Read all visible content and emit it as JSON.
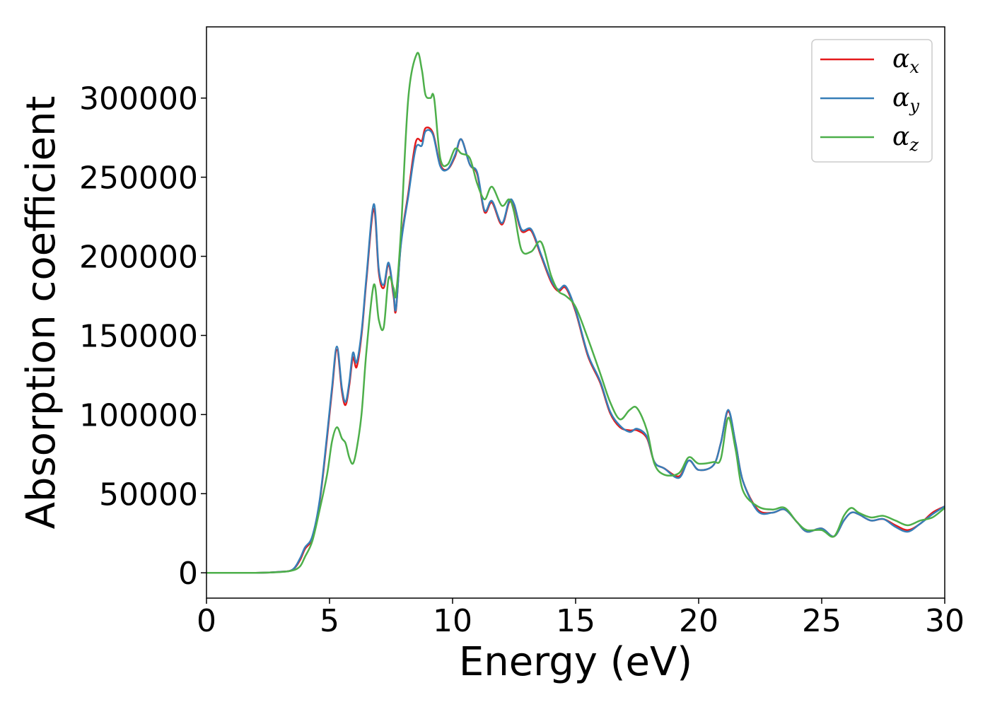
{
  "chart_data": {
    "type": "line",
    "title": "",
    "xlabel": "Energy (eV)",
    "ylabel": "Absorption coefficient",
    "xlim": [
      0,
      30
    ],
    "ylim": [
      -16000,
      345000
    ],
    "x_ticks": [
      0,
      5,
      10,
      15,
      20,
      25,
      30
    ],
    "y_ticks": [
      0,
      50000,
      100000,
      150000,
      200000,
      250000,
      300000
    ],
    "grid": false,
    "legend_position": "top-right",
    "series": [
      {
        "name": "α",
        "subscript": "x",
        "color": "#e41a1c",
        "points": [
          [
            0,
            0
          ],
          [
            2,
            0
          ],
          [
            3,
            600
          ],
          [
            3.5,
            2000
          ],
          [
            3.8,
            8000
          ],
          [
            4,
            15000
          ],
          [
            4.3,
            22000
          ],
          [
            4.6,
            45000
          ],
          [
            4.9,
            85000
          ],
          [
            5.1,
            115000
          ],
          [
            5.3,
            141000
          ],
          [
            5.5,
            115000
          ],
          [
            5.65,
            106000
          ],
          [
            5.8,
            118000
          ],
          [
            5.95,
            136000
          ],
          [
            6.1,
            130000
          ],
          [
            6.3,
            150000
          ],
          [
            6.5,
            185000
          ],
          [
            6.8,
            230000
          ],
          [
            7.0,
            190000
          ],
          [
            7.2,
            180000
          ],
          [
            7.4,
            195000
          ],
          [
            7.6,
            175000
          ],
          [
            7.7,
            166000
          ],
          [
            7.9,
            208000
          ],
          [
            8.2,
            240000
          ],
          [
            8.5,
            272000
          ],
          [
            8.75,
            273000
          ],
          [
            8.9,
            281000
          ],
          [
            9.2,
            278000
          ],
          [
            9.5,
            258000
          ],
          [
            9.8,
            255000
          ],
          [
            10.1,
            263000
          ],
          [
            10.35,
            274000
          ],
          [
            10.7,
            258000
          ],
          [
            11.0,
            252000
          ],
          [
            11.3,
            228000
          ],
          [
            11.6,
            234000
          ],
          [
            12.0,
            220000
          ],
          [
            12.3,
            234000
          ],
          [
            12.5,
            232000
          ],
          [
            12.8,
            216000
          ],
          [
            13.2,
            216000
          ],
          [
            13.6,
            200000
          ],
          [
            14.0,
            184000
          ],
          [
            14.3,
            178000
          ],
          [
            14.6,
            180000
          ],
          [
            15.0,
            165000
          ],
          [
            15.5,
            137000
          ],
          [
            16.0,
            120000
          ],
          [
            16.4,
            101000
          ],
          [
            16.8,
            92000
          ],
          [
            17.2,
            90000
          ],
          [
            17.5,
            90000
          ],
          [
            17.9,
            85000
          ],
          [
            18.2,
            70000
          ],
          [
            18.6,
            66000
          ],
          [
            19.2,
            61000
          ],
          [
            19.6,
            71000
          ],
          [
            20.0,
            65000
          ],
          [
            20.6,
            68000
          ],
          [
            20.9,
            82000
          ],
          [
            21.2,
            102000
          ],
          [
            21.5,
            82000
          ],
          [
            21.8,
            58000
          ],
          [
            22.4,
            40000
          ],
          [
            23.0,
            38000
          ],
          [
            23.5,
            40000
          ],
          [
            24.0,
            32000
          ],
          [
            24.4,
            26000
          ],
          [
            25.0,
            28000
          ],
          [
            25.5,
            23000
          ],
          [
            25.9,
            33000
          ],
          [
            26.2,
            38000
          ],
          [
            26.5,
            37000
          ],
          [
            27.0,
            33000
          ],
          [
            27.5,
            34000
          ],
          [
            28.0,
            30000
          ],
          [
            28.5,
            27000
          ],
          [
            29.0,
            31000
          ],
          [
            29.5,
            38000
          ],
          [
            30,
            42000
          ]
        ]
      },
      {
        "name": "α",
        "subscript": "y",
        "color": "#377eb8",
        "points": [
          [
            0,
            0
          ],
          [
            2,
            0
          ],
          [
            3,
            600
          ],
          [
            3.5,
            2000
          ],
          [
            3.8,
            9000
          ],
          [
            4,
            16000
          ],
          [
            4.3,
            23000
          ],
          [
            4.6,
            46000
          ],
          [
            4.9,
            87000
          ],
          [
            5.1,
            117000
          ],
          [
            5.3,
            143000
          ],
          [
            5.5,
            117000
          ],
          [
            5.65,
            108000
          ],
          [
            5.8,
            120000
          ],
          [
            5.95,
            139000
          ],
          [
            6.1,
            133000
          ],
          [
            6.3,
            152000
          ],
          [
            6.5,
            187000
          ],
          [
            6.8,
            233000
          ],
          [
            7.0,
            192000
          ],
          [
            7.2,
            182000
          ],
          [
            7.4,
            196000
          ],
          [
            7.6,
            177000
          ],
          [
            7.7,
            167000
          ],
          [
            7.9,
            207000
          ],
          [
            8.2,
            238000
          ],
          [
            8.5,
            268000
          ],
          [
            8.75,
            270000
          ],
          [
            8.9,
            279000
          ],
          [
            9.2,
            277000
          ],
          [
            9.5,
            257000
          ],
          [
            9.8,
            255000
          ],
          [
            10.1,
            264000
          ],
          [
            10.35,
            274000
          ],
          [
            10.7,
            258000
          ],
          [
            11.0,
            253000
          ],
          [
            11.3,
            229000
          ],
          [
            11.6,
            235000
          ],
          [
            12.0,
            221000
          ],
          [
            12.3,
            235000
          ],
          [
            12.5,
            233000
          ],
          [
            12.8,
            217000
          ],
          [
            13.2,
            217000
          ],
          [
            13.6,
            201000
          ],
          [
            14.0,
            185000
          ],
          [
            14.3,
            179000
          ],
          [
            14.6,
            181000
          ],
          [
            15.0,
            166000
          ],
          [
            15.5,
            138000
          ],
          [
            16.0,
            121000
          ],
          [
            16.4,
            102000
          ],
          [
            16.8,
            93000
          ],
          [
            17.2,
            89000
          ],
          [
            17.5,
            91000
          ],
          [
            17.9,
            86000
          ],
          [
            18.2,
            70000
          ],
          [
            18.6,
            66000
          ],
          [
            19.2,
            60000
          ],
          [
            19.6,
            71000
          ],
          [
            20.0,
            65000
          ],
          [
            20.6,
            68000
          ],
          [
            20.9,
            82000
          ],
          [
            21.2,
            103000
          ],
          [
            21.5,
            82000
          ],
          [
            21.8,
            58000
          ],
          [
            22.4,
            39000
          ],
          [
            23.0,
            38000
          ],
          [
            23.5,
            40000
          ],
          [
            24.0,
            32000
          ],
          [
            24.4,
            26000
          ],
          [
            25.0,
            28000
          ],
          [
            25.5,
            23000
          ],
          [
            25.9,
            33000
          ],
          [
            26.2,
            38000
          ],
          [
            26.5,
            37000
          ],
          [
            27.0,
            33000
          ],
          [
            27.5,
            34000
          ],
          [
            28.0,
            29000
          ],
          [
            28.5,
            26000
          ],
          [
            29.0,
            31000
          ],
          [
            29.5,
            37000
          ],
          [
            30,
            42000
          ]
        ]
      },
      {
        "name": "α",
        "subscript": "z",
        "color": "#4daf4a",
        "points": [
          [
            0,
            0
          ],
          [
            2,
            0
          ],
          [
            3,
            500
          ],
          [
            3.5,
            1500
          ],
          [
            3.8,
            4000
          ],
          [
            4,
            10000
          ],
          [
            4.3,
            20000
          ],
          [
            4.6,
            40000
          ],
          [
            4.9,
            62000
          ],
          [
            5.1,
            83000
          ],
          [
            5.3,
            92000
          ],
          [
            5.5,
            85000
          ],
          [
            5.65,
            82000
          ],
          [
            5.8,
            73000
          ],
          [
            5.95,
            69000
          ],
          [
            6.1,
            78000
          ],
          [
            6.3,
            100000
          ],
          [
            6.5,
            140000
          ],
          [
            6.8,
            182000
          ],
          [
            7.0,
            160000
          ],
          [
            7.2,
            155000
          ],
          [
            7.4,
            186000
          ],
          [
            7.6,
            180000
          ],
          [
            7.7,
            176000
          ],
          [
            7.9,
            215000
          ],
          [
            8.2,
            300000
          ],
          [
            8.55,
            328000
          ],
          [
            8.75,
            318000
          ],
          [
            8.9,
            302000
          ],
          [
            9.1,
            300000
          ],
          [
            9.25,
            300000
          ],
          [
            9.5,
            262000
          ],
          [
            9.8,
            258000
          ],
          [
            10.1,
            268000
          ],
          [
            10.35,
            265000
          ],
          [
            10.7,
            262000
          ],
          [
            11.0,
            246000
          ],
          [
            11.3,
            236000
          ],
          [
            11.6,
            244000
          ],
          [
            12.0,
            232000
          ],
          [
            12.3,
            236000
          ],
          [
            12.5,
            228000
          ],
          [
            12.8,
            204000
          ],
          [
            13.2,
            203000
          ],
          [
            13.6,
            209000
          ],
          [
            14.0,
            188000
          ],
          [
            14.3,
            178000
          ],
          [
            14.6,
            175000
          ],
          [
            15.0,
            168000
          ],
          [
            15.5,
            148000
          ],
          [
            16.0,
            126000
          ],
          [
            16.4,
            108000
          ],
          [
            16.8,
            97000
          ],
          [
            17.2,
            103000
          ],
          [
            17.5,
            104000
          ],
          [
            17.9,
            90000
          ],
          [
            18.2,
            69000
          ],
          [
            18.6,
            62000
          ],
          [
            19.2,
            63000
          ],
          [
            19.6,
            73000
          ],
          [
            20.0,
            69000
          ],
          [
            20.6,
            70000
          ],
          [
            20.9,
            72000
          ],
          [
            21.2,
            98000
          ],
          [
            21.5,
            78000
          ],
          [
            21.8,
            52000
          ],
          [
            22.4,
            42000
          ],
          [
            23.0,
            40000
          ],
          [
            23.5,
            41000
          ],
          [
            24.0,
            32000
          ],
          [
            24.4,
            27000
          ],
          [
            25.0,
            27000
          ],
          [
            25.5,
            23000
          ],
          [
            25.9,
            36000
          ],
          [
            26.2,
            41000
          ],
          [
            26.5,
            38000
          ],
          [
            27.0,
            35000
          ],
          [
            27.5,
            36000
          ],
          [
            28.0,
            33000
          ],
          [
            28.5,
            30000
          ],
          [
            29.0,
            33000
          ],
          [
            29.5,
            35000
          ],
          [
            30,
            41000
          ]
        ]
      }
    ]
  }
}
